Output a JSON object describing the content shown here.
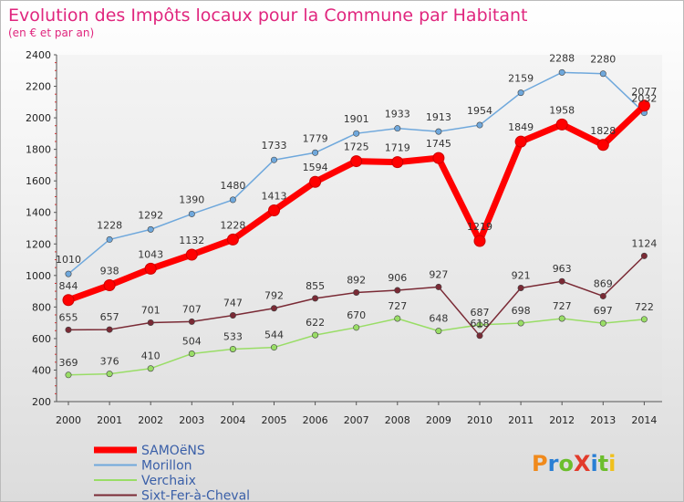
{
  "chart_data": {
    "type": "line",
    "title": "Evolution des Impôts locaux pour la Commune par Habitant",
    "subtitle": "(en € et par an)",
    "categories": [
      "2000",
      "2001",
      "2002",
      "2003",
      "2004",
      "2005",
      "2006",
      "2007",
      "2008",
      "2009",
      "2010",
      "2011",
      "2012",
      "2013",
      "2014"
    ],
    "ylim": [
      200,
      2400
    ],
    "yticks": [
      "200",
      "400",
      "600",
      "800",
      "1000",
      "1200",
      "1400",
      "1600",
      "1800",
      "2000",
      "2200",
      "2400"
    ],
    "grid": false,
    "legend_position": "bottom-left",
    "series": [
      {
        "name": "Morillon",
        "color": "#6fa8dc",
        "values": [
          1010,
          1228,
          1292,
          1390,
          1480,
          1733,
          1779,
          1901,
          1933,
          1913,
          1954,
          2159,
          2288,
          2280,
          2032
        ]
      },
      {
        "name": "Verchaix",
        "color": "#99dd66",
        "values": [
          369,
          376,
          410,
          504,
          533,
          544,
          622,
          670,
          727,
          648,
          687,
          698,
          727,
          697,
          722
        ]
      },
      {
        "name": "Sixt-Fer-à-Cheval",
        "color": "#7a2a35",
        "values": [
          655,
          657,
          701,
          707,
          747,
          792,
          855,
          892,
          906,
          927,
          618,
          921,
          963,
          869,
          1124
        ]
      },
      {
        "name": "SAMOëNS",
        "color": "#ff0000",
        "values": [
          844,
          938,
          1043,
          1132,
          1228,
          1413,
          1594,
          1725,
          1719,
          1745,
          1219,
          1849,
          1958,
          1828,
          2077
        ]
      }
    ],
    "label_strings": {
      "Morillon": [
        "1010",
        "1228",
        "1292",
        "1390",
        "1480",
        "1733",
        "1779",
        "1901",
        "1933",
        "1913",
        "1954",
        "2159",
        "2288",
        "2280",
        "2032"
      ],
      "Verchaix": [
        "369",
        "376",
        "410",
        "504",
        "533",
        "544",
        "622",
        "670",
        "727",
        "648",
        "687",
        "698",
        "727",
        "697",
        "722"
      ],
      "Sixt-Fer-à-Cheval": [
        "655",
        "657",
        "701",
        "707",
        "747",
        "792",
        "855",
        "892",
        "906",
        "927",
        "618",
        "921",
        "963",
        "869",
        "1124"
      ],
      "SAMOëNS": [
        "844",
        "938",
        "1043",
        "1132",
        "1228",
        "1413",
        "1594",
        "1725",
        "1719",
        "1745",
        "1219",
        "1849",
        "1958",
        "1828",
        "2077"
      ]
    },
    "legend_entries": [
      "SAMOëNS",
      "Morillon",
      "Verchaix",
      "Sixt-Fer-à-Cheval"
    ]
  },
  "title_color": "#e0267e",
  "legend_text_color": "#3a5fa8",
  "logo": {
    "text": "ProXiti"
  }
}
